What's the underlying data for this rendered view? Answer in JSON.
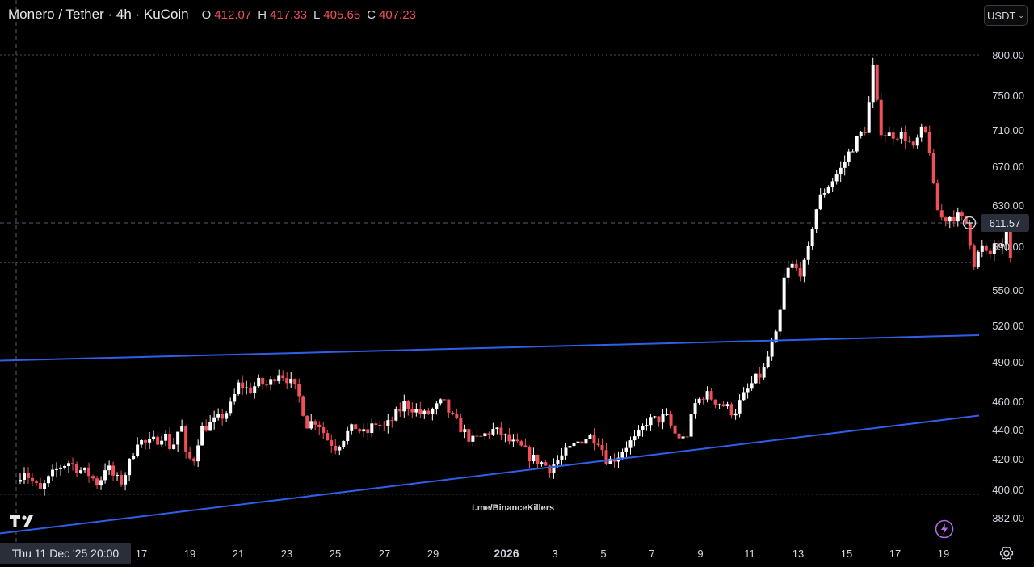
{
  "header": {
    "symbol": "Monero / Tether · 4h · KuCoin",
    "open_label": "O",
    "open": "412.07",
    "high_label": "H",
    "high": "417.33",
    "low_label": "L",
    "low": "405.65",
    "close_label": "C",
    "close": "407.23"
  },
  "currency_button": {
    "label": "USDT"
  },
  "crosshair": {
    "time_label": "Thu 11 Dec '25   20:00",
    "price_label": "611.57"
  },
  "watermark": "t.me/BinanceKillers",
  "icons": {
    "logo": "tradingview-logo-icon",
    "bolt": "lightning-bolt-icon",
    "settings": "gear-icon",
    "add": "plus-circle-icon"
  },
  "colors": {
    "up": "#ffffff",
    "down": "#f0505a",
    "trendline": "#2f5fe8",
    "background": "#000000"
  },
  "chart_data": {
    "type": "candlestick",
    "ylim": [
      382,
      800
    ],
    "y_ticks": [
      "800.00",
      "750.00",
      "710.00",
      "670.00",
      "630.00",
      "590.00",
      "550.00",
      "520.00",
      "490.00",
      "460.00",
      "440.00",
      "420.00",
      "400.00",
      "382.00"
    ],
    "x_ticks": [
      "17",
      "19",
      "21",
      "23",
      "25",
      "27",
      "29",
      "2026",
      "3",
      "5",
      "7",
      "9",
      "11",
      "13",
      "15",
      "17",
      "19"
    ],
    "horizontal_levels": [
      800,
      575,
      397
    ],
    "close_path": [
      {
        "d": 0,
        "p": 405
      },
      {
        "d": 0.3,
        "p": 414
      },
      {
        "d": 0.6,
        "p": 406
      },
      {
        "d": 1.0,
        "p": 399
      },
      {
        "d": 1.4,
        "p": 408
      },
      {
        "d": 1.8,
        "p": 415
      },
      {
        "d": 2.2,
        "p": 418
      },
      {
        "d": 2.6,
        "p": 413
      },
      {
        "d": 3.0,
        "p": 410
      },
      {
        "d": 3.4,
        "p": 403
      },
      {
        "d": 3.7,
        "p": 416
      },
      {
        "d": 4.0,
        "p": 409
      },
      {
        "d": 4.3,
        "p": 404
      },
      {
        "d": 4.6,
        "p": 414
      },
      {
        "d": 5.0,
        "p": 433
      },
      {
        "d": 5.4,
        "p": 430
      },
      {
        "d": 5.8,
        "p": 433
      },
      {
        "d": 6.1,
        "p": 438
      },
      {
        "d": 6.4,
        "p": 426
      },
      {
        "d": 6.8,
        "p": 445
      },
      {
        "d": 7.0,
        "p": 422
      },
      {
        "d": 7.3,
        "p": 418
      },
      {
        "d": 7.6,
        "p": 440
      },
      {
        "d": 8.0,
        "p": 444
      },
      {
        "d": 8.4,
        "p": 448
      },
      {
        "d": 8.8,
        "p": 455
      },
      {
        "d": 9.2,
        "p": 474
      },
      {
        "d": 9.6,
        "p": 468
      },
      {
        "d": 10.0,
        "p": 474
      },
      {
        "d": 10.4,
        "p": 472
      },
      {
        "d": 10.8,
        "p": 483
      },
      {
        "d": 11.2,
        "p": 477
      },
      {
        "d": 11.6,
        "p": 467
      },
      {
        "d": 12.0,
        "p": 444
      },
      {
        "d": 12.4,
        "p": 447
      },
      {
        "d": 12.8,
        "p": 434
      },
      {
        "d": 13.2,
        "p": 428
      },
      {
        "d": 13.6,
        "p": 437
      },
      {
        "d": 14.0,
        "p": 442
      },
      {
        "d": 14.4,
        "p": 436
      },
      {
        "d": 14.8,
        "p": 445
      },
      {
        "d": 15.2,
        "p": 441
      },
      {
        "d": 15.6,
        "p": 449
      },
      {
        "d": 16.0,
        "p": 458
      },
      {
        "d": 16.4,
        "p": 455
      },
      {
        "d": 16.8,
        "p": 450
      },
      {
        "d": 17.2,
        "p": 454
      },
      {
        "d": 17.6,
        "p": 460
      },
      {
        "d": 18.0,
        "p": 448
      },
      {
        "d": 18.4,
        "p": 440
      },
      {
        "d": 18.8,
        "p": 432
      },
      {
        "d": 19.2,
        "p": 435
      },
      {
        "d": 19.6,
        "p": 440
      },
      {
        "d": 20.0,
        "p": 437
      },
      {
        "d": 20.4,
        "p": 431
      },
      {
        "d": 20.8,
        "p": 428
      },
      {
        "d": 21.2,
        "p": 421
      },
      {
        "d": 21.6,
        "p": 418
      },
      {
        "d": 22.0,
        "p": 414
      },
      {
        "d": 22.4,
        "p": 420
      },
      {
        "d": 22.8,
        "p": 426
      },
      {
        "d": 23.2,
        "p": 432
      },
      {
        "d": 23.6,
        "p": 436
      },
      {
        "d": 24.0,
        "p": 433
      },
      {
        "d": 24.4,
        "p": 418
      },
      {
        "d": 24.8,
        "p": 422
      },
      {
        "d": 25.2,
        "p": 430
      },
      {
        "d": 25.6,
        "p": 434
      },
      {
        "d": 26.0,
        "p": 446
      },
      {
        "d": 26.4,
        "p": 447
      },
      {
        "d": 26.8,
        "p": 449
      },
      {
        "d": 27.2,
        "p": 436
      },
      {
        "d": 27.6,
        "p": 433
      },
      {
        "d": 28.0,
        "p": 458
      },
      {
        "d": 28.4,
        "p": 466
      },
      {
        "d": 28.8,
        "p": 461
      },
      {
        "d": 29.2,
        "p": 457
      },
      {
        "d": 29.6,
        "p": 452
      },
      {
        "d": 30.0,
        "p": 464
      },
      {
        "d": 30.4,
        "p": 475
      },
      {
        "d": 30.8,
        "p": 482
      },
      {
        "d": 31.1,
        "p": 500
      },
      {
        "d": 31.4,
        "p": 514
      },
      {
        "d": 31.7,
        "p": 565
      },
      {
        "d": 32.0,
        "p": 572
      },
      {
        "d": 32.3,
        "p": 566
      },
      {
        "d": 32.6,
        "p": 576
      },
      {
        "d": 32.9,
        "p": 620
      },
      {
        "d": 33.2,
        "p": 640
      },
      {
        "d": 33.6,
        "p": 654
      },
      {
        "d": 34.0,
        "p": 667
      },
      {
        "d": 34.4,
        "p": 688
      },
      {
        "d": 34.8,
        "p": 704
      },
      {
        "d": 35.1,
        "p": 715
      },
      {
        "d": 35.3,
        "p": 792
      },
      {
        "d": 35.6,
        "p": 712
      },
      {
        "d": 35.9,
        "p": 704
      },
      {
        "d": 36.3,
        "p": 706
      },
      {
        "d": 36.7,
        "p": 702
      },
      {
        "d": 37.0,
        "p": 688
      },
      {
        "d": 37.3,
        "p": 708
      },
      {
        "d": 37.6,
        "p": 705
      },
      {
        "d": 37.9,
        "p": 630
      },
      {
        "d": 38.2,
        "p": 616
      },
      {
        "d": 38.6,
        "p": 620
      },
      {
        "d": 38.9,
        "p": 618
      },
      {
        "d": 39.2,
        "p": 612
      },
      {
        "d": 39.5,
        "p": 575
      },
      {
        "d": 39.8,
        "p": 590
      },
      {
        "d": 40.1,
        "p": 578
      },
      {
        "d": 40.4,
        "p": 598
      },
      {
        "d": 40.6,
        "p": 574
      },
      {
        "d": 40.8,
        "p": 614
      },
      {
        "d": 41.0,
        "p": 577
      }
    ],
    "trendlines": [
      {
        "from": {
          "d": 0,
          "p": 491
        },
        "to": {
          "d": 40.4,
          "p": 512
        }
      },
      {
        "from": {
          "d": 0,
          "p": 372
        },
        "to": {
          "d": 40.4,
          "p": 450
        }
      }
    ]
  }
}
